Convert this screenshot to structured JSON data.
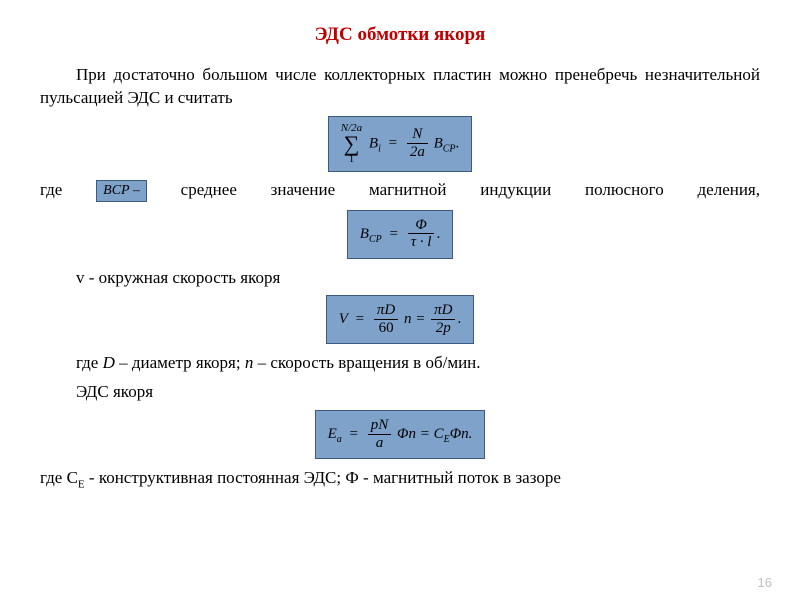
{
  "colors": {
    "title": "#bf0000",
    "formula_bg": "#7fa2ca",
    "formula_border": "#3c5a80",
    "text": "#000000",
    "pagenum": "#bfbfbf",
    "background": "#ffffff"
  },
  "fontsizes": {
    "title": 19,
    "body": 17,
    "formula": 15,
    "sub": 10
  },
  "title": "ЭДС обмотки якоря",
  "p1": "При достаточно большом числе коллекторных пластин можно пренебречь незначительной пульсацией  ЭДС и считать",
  "formula1": {
    "upper": "N/2a",
    "lower": "1",
    "body_left": "B",
    "body_left_sub": "i",
    "eq": "=",
    "frac_num": "N",
    "frac_den": "2a",
    "right": "B",
    "right_sub": "CP",
    "dot": "."
  },
  "where1_a": "где",
  "bcp_box": "B_CP –",
  "where1_b": " среднее  значение  магнитной  индукции  полюсного  деления,",
  "formula2": {
    "left": "B",
    "left_sub": "CP",
    "eq": "=",
    "num": "Φ",
    "den": "τ · l",
    "dot": "."
  },
  "p_v": "v - окружная  скорость  якоря",
  "formula3": {
    "left": "V",
    "eq": "=",
    "f1_num": "πD",
    "f1_den": "60",
    "mid": "n =",
    "f2_num": "πD",
    "f2_den": "2p",
    "dot": "."
  },
  "p_d": "где D – диаметр якоря; n – скорость вращения в об/мин.",
  "p_eds": "ЭДС якоря",
  "formula4": {
    "left": "E",
    "left_sub": "a",
    "eq": "=",
    "num": "pN",
    "den": "a",
    "mid": "Φn = C",
    "mid_sub": "E",
    "tail": "Φn."
  },
  "p_ce_a": "где С",
  "p_ce_sub": "E",
  "p_ce_b": " - конструктивная постоянная ЭДС; Ф - магнитный поток в зазоре",
  "page_number": "16"
}
